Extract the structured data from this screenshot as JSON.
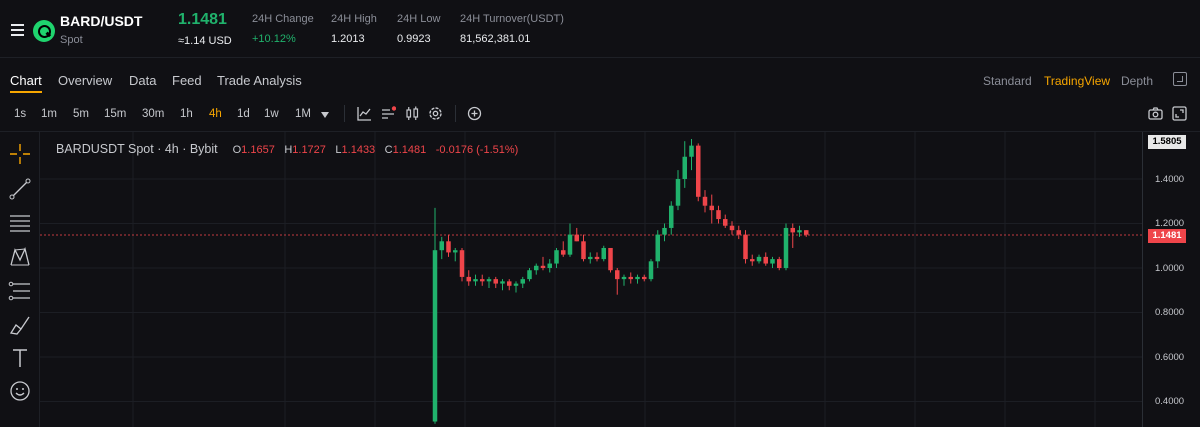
{
  "header": {
    "pair": "BARD/USDT",
    "market_type": "Spot",
    "last_price": "1.1481",
    "last_price_usd": "≈1.14 USD",
    "stats": [
      {
        "label": "24H Change",
        "value": "+10.12%",
        "positive": true
      },
      {
        "label": "24H High",
        "value": "1.2013",
        "positive": false
      },
      {
        "label": "24H Low",
        "value": "0.9923",
        "positive": false
      },
      {
        "label": "24H Turnover(USDT)",
        "value": "81,562,381.01",
        "positive": false
      }
    ]
  },
  "tabs": [
    "Chart",
    "Overview",
    "Data",
    "Feed",
    "Trade Analysis"
  ],
  "active_tab": "Chart",
  "views": [
    "Standard",
    "TradingView",
    "Depth"
  ],
  "active_view": "TradingView",
  "intervals": [
    "1s",
    "1m",
    "5m",
    "15m",
    "30m",
    "1h",
    "4h",
    "1d",
    "1w",
    "1M"
  ],
  "active_interval": "4h",
  "legend": {
    "symbol": "BARDUSDT Spot · 4h · Bybit",
    "open_key": "O",
    "open": "1.1657",
    "high_key": "H",
    "high": "1.1727",
    "low_key": "L",
    "low": "1.1433",
    "close_key": "C",
    "close": "1.1481",
    "change": "-0.0176 (-1.51%)"
  },
  "price_axis": {
    "ticks": [
      "1.4000",
      "1.2000",
      "1.0000",
      "0.8000",
      "0.6000",
      "0.4000"
    ],
    "high_label": "1.5805",
    "last_label": "1.1481"
  },
  "colors": {
    "up": "#20b26c",
    "down": "#ef454a",
    "accent": "#f7a600",
    "background": "#101014"
  },
  "chart_data": {
    "type": "candlestick",
    "interval": "4h",
    "ylim": [
      0.3,
      1.62
    ],
    "last_price": 1.1481,
    "candles": [
      {
        "o": 0.31,
        "h": 1.27,
        "l": 0.3,
        "c": 1.08
      },
      {
        "o": 1.08,
        "h": 1.14,
        "l": 1.04,
        "c": 1.12
      },
      {
        "o": 1.12,
        "h": 1.15,
        "l": 1.05,
        "c": 1.07
      },
      {
        "o": 1.07,
        "h": 1.09,
        "l": 1.03,
        "c": 1.08
      },
      {
        "o": 1.08,
        "h": 1.09,
        "l": 0.94,
        "c": 0.96
      },
      {
        "o": 0.96,
        "h": 0.99,
        "l": 0.92,
        "c": 0.94
      },
      {
        "o": 0.94,
        "h": 0.97,
        "l": 0.92,
        "c": 0.95
      },
      {
        "o": 0.95,
        "h": 0.97,
        "l": 0.92,
        "c": 0.94
      },
      {
        "o": 0.94,
        "h": 0.96,
        "l": 0.91,
        "c": 0.95
      },
      {
        "o": 0.95,
        "h": 0.96,
        "l": 0.91,
        "c": 0.93
      },
      {
        "o": 0.93,
        "h": 0.95,
        "l": 0.9,
        "c": 0.94
      },
      {
        "o": 0.94,
        "h": 0.95,
        "l": 0.9,
        "c": 0.92
      },
      {
        "o": 0.92,
        "h": 0.94,
        "l": 0.89,
        "c": 0.93
      },
      {
        "o": 0.93,
        "h": 0.96,
        "l": 0.91,
        "c": 0.95
      },
      {
        "o": 0.95,
        "h": 1.0,
        "l": 0.94,
        "c": 0.99
      },
      {
        "o": 0.99,
        "h": 1.02,
        "l": 0.97,
        "c": 1.01
      },
      {
        "o": 1.01,
        "h": 1.05,
        "l": 0.99,
        "c": 1.0
      },
      {
        "o": 1.0,
        "h": 1.04,
        "l": 0.98,
        "c": 1.02
      },
      {
        "o": 1.02,
        "h": 1.09,
        "l": 1.0,
        "c": 1.08
      },
      {
        "o": 1.08,
        "h": 1.12,
        "l": 1.05,
        "c": 1.06
      },
      {
        "o": 1.06,
        "h": 1.2,
        "l": 1.05,
        "c": 1.15
      },
      {
        "o": 1.15,
        "h": 1.18,
        "l": 1.12,
        "c": 1.12
      },
      {
        "o": 1.12,
        "h": 1.15,
        "l": 1.03,
        "c": 1.04
      },
      {
        "o": 1.04,
        "h": 1.07,
        "l": 1.02,
        "c": 1.05
      },
      {
        "o": 1.05,
        "h": 1.07,
        "l": 1.03,
        "c": 1.04
      },
      {
        "o": 1.04,
        "h": 1.1,
        "l": 1.03,
        "c": 1.09
      },
      {
        "o": 1.09,
        "h": 1.09,
        "l": 0.98,
        "c": 0.99
      },
      {
        "o": 0.99,
        "h": 1.0,
        "l": 0.88,
        "c": 0.95
      },
      {
        "o": 0.95,
        "h": 0.97,
        "l": 0.92,
        "c": 0.96
      },
      {
        "o": 0.96,
        "h": 0.98,
        "l": 0.93,
        "c": 0.95
      },
      {
        "o": 0.95,
        "h": 0.97,
        "l": 0.93,
        "c": 0.96
      },
      {
        "o": 0.96,
        "h": 0.97,
        "l": 0.94,
        "c": 0.95
      },
      {
        "o": 0.95,
        "h": 1.04,
        "l": 0.94,
        "c": 1.03
      },
      {
        "o": 1.03,
        "h": 1.17,
        "l": 1.0,
        "c": 1.15
      },
      {
        "o": 1.15,
        "h": 1.2,
        "l": 1.12,
        "c": 1.18
      },
      {
        "o": 1.18,
        "h": 1.3,
        "l": 1.15,
        "c": 1.28
      },
      {
        "o": 1.28,
        "h": 1.44,
        "l": 1.26,
        "c": 1.4
      },
      {
        "o": 1.4,
        "h": 1.57,
        "l": 1.36,
        "c": 1.5
      },
      {
        "o": 1.5,
        "h": 1.58,
        "l": 1.44,
        "c": 1.55
      },
      {
        "o": 1.55,
        "h": 1.56,
        "l": 1.3,
        "c": 1.32
      },
      {
        "o": 1.32,
        "h": 1.35,
        "l": 1.25,
        "c": 1.28
      },
      {
        "o": 1.28,
        "h": 1.33,
        "l": 1.2,
        "c": 1.26
      },
      {
        "o": 1.26,
        "h": 1.28,
        "l": 1.2,
        "c": 1.22
      },
      {
        "o": 1.22,
        "h": 1.24,
        "l": 1.18,
        "c": 1.19
      },
      {
        "o": 1.19,
        "h": 1.21,
        "l": 1.15,
        "c": 1.17
      },
      {
        "o": 1.17,
        "h": 1.19,
        "l": 1.13,
        "c": 1.15
      },
      {
        "o": 1.15,
        "h": 1.17,
        "l": 1.02,
        "c": 1.04
      },
      {
        "o": 1.04,
        "h": 1.06,
        "l": 1.01,
        "c": 1.03
      },
      {
        "o": 1.03,
        "h": 1.06,
        "l": 1.02,
        "c": 1.05
      },
      {
        "o": 1.05,
        "h": 1.07,
        "l": 1.01,
        "c": 1.02
      },
      {
        "o": 1.02,
        "h": 1.05,
        "l": 1.0,
        "c": 1.04
      },
      {
        "o": 1.04,
        "h": 1.05,
        "l": 0.99,
        "c": 1.0
      },
      {
        "o": 1.0,
        "h": 1.2,
        "l": 0.99,
        "c": 1.18
      },
      {
        "o": 1.18,
        "h": 1.2,
        "l": 1.09,
        "c": 1.16
      },
      {
        "o": 1.16,
        "h": 1.19,
        "l": 1.14,
        "c": 1.17
      },
      {
        "o": 1.17,
        "h": 1.17,
        "l": 1.14,
        "c": 1.15
      }
    ]
  }
}
